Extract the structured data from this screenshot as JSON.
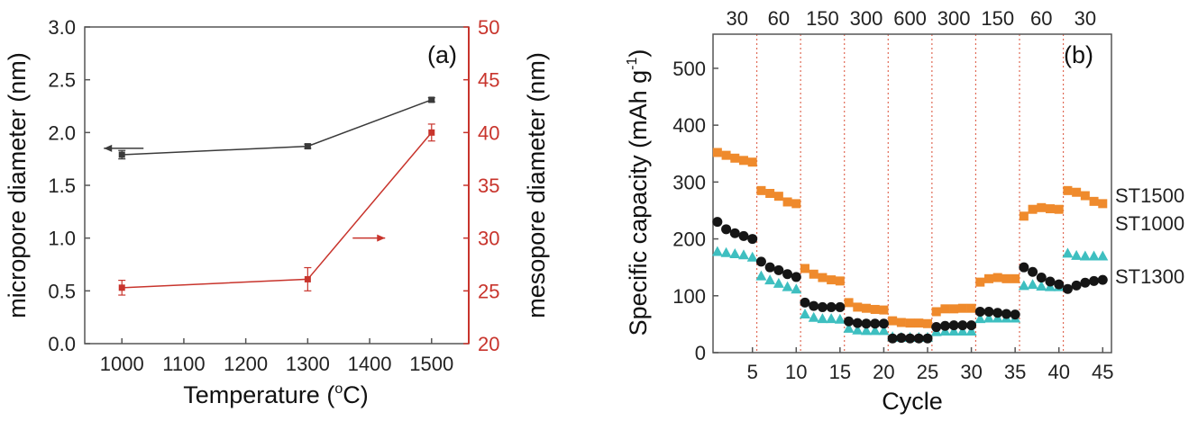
{
  "chart_data": [
    {
      "panel": "a",
      "type": "line",
      "label": "(a)",
      "xlabel_main": "Temperature (",
      "xlabel_sup": "o",
      "xlabel_end": "C)",
      "ylabel": "micropore diameter (nm)",
      "ylabel_right": "mesopore diameter (nm)",
      "xlim": [
        940,
        1560
      ],
      "ylim": [
        0,
        3
      ],
      "ylim_right": [
        20,
        50
      ],
      "x_ticks": [
        1000,
        1100,
        1200,
        1300,
        1400,
        1500
      ],
      "y_ticks": [
        "0.0",
        "0.5",
        "1.0",
        "1.5",
        "2.0",
        "2.5",
        "3.0"
      ],
      "y_ticks_right": [
        "20",
        "25",
        "30",
        "35",
        "40",
        "45",
        "50"
      ],
      "colors": {
        "micropore": "#3a3a3a",
        "mesopore": "#c8342c"
      },
      "series": [
        {
          "name": "micropore",
          "axis": "left",
          "x": [
            1000,
            1300,
            1500
          ],
          "y": [
            1.79,
            1.87,
            2.31
          ],
          "err": [
            0.04,
            0.02,
            0.02
          ]
        },
        {
          "name": "mesopore",
          "axis": "right",
          "x": [
            1000,
            1300,
            1500
          ],
          "y": [
            25.3,
            26.1,
            40.0
          ],
          "err": [
            0.7,
            1.1,
            0.8
          ]
        }
      ],
      "arrows": [
        {
          "target": "micropore",
          "direction": "left"
        },
        {
          "target": "mesopore",
          "direction": "right"
        }
      ]
    },
    {
      "panel": "b",
      "type": "scatter",
      "label": "(b)",
      "xlabel": "Cycle",
      "ylabel_main": "Specific capacity (mAh g",
      "ylabel_sup": "-1",
      "ylabel_end": ")",
      "xlim": [
        0.5,
        46
      ],
      "ylim": [
        0,
        560
      ],
      "x_ticks": [
        5,
        10,
        15,
        20,
        25,
        30,
        35,
        40,
        45
      ],
      "y_ticks": [
        0,
        100,
        200,
        300,
        400,
        500
      ],
      "rates": [
        "30",
        "60",
        "150",
        "300",
        "600",
        "300",
        "150",
        "60",
        "30"
      ],
      "segment_boundaries": [
        5.5,
        10.5,
        15.5,
        20.5,
        25.5,
        30.5,
        35.5,
        40.5
      ],
      "colors": {
        "ST1500": "#ef8a2c",
        "ST1000": "#3ebfc0",
        "ST1300": "#151515",
        "divider": "#e06a55"
      },
      "series": [
        {
          "name": "ST1500",
          "marker": "square",
          "cycles_start": 1,
          "values": [
            352,
            347,
            342,
            338,
            335,
            285,
            280,
            275,
            265,
            262,
            148,
            138,
            132,
            128,
            126,
            88,
            80,
            78,
            76,
            75,
            56,
            53,
            52,
            52,
            51,
            72,
            77,
            77,
            78,
            78,
            124,
            130,
            132,
            130,
            130,
            240,
            252,
            255,
            253,
            252,
            285,
            282,
            276,
            266,
            262
          ]
        },
        {
          "name": "ST1000",
          "marker": "triangle",
          "cycles_start": 1,
          "values": [
            178,
            176,
            174,
            172,
            168,
            135,
            128,
            122,
            116,
            112,
            68,
            62,
            60,
            60,
            59,
            43,
            40,
            39,
            39,
            39,
            28,
            27,
            27,
            27,
            27,
            37,
            38,
            38,
            38,
            38,
            60,
            61,
            61,
            61,
            61,
            118,
            120,
            117,
            116,
            116,
            175,
            171,
            170,
            170,
            170
          ]
        },
        {
          "name": "ST1300",
          "marker": "circle",
          "cycles_start": 1,
          "values": [
            230,
            217,
            210,
            205,
            200,
            160,
            150,
            145,
            138,
            133,
            88,
            82,
            80,
            80,
            80,
            55,
            52,
            51,
            51,
            51,
            25,
            26,
            25,
            25,
            25,
            45,
            47,
            48,
            48,
            48,
            72,
            72,
            70,
            68,
            67,
            150,
            142,
            132,
            125,
            120,
            112,
            118,
            123,
            126,
            128
          ]
        }
      ],
      "series_labels": [
        "ST1500",
        "ST1000",
        "ST1300"
      ]
    }
  ]
}
